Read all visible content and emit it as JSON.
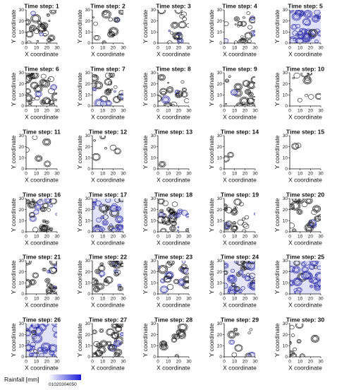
{
  "figure": {
    "panel_title_prefix": "Time step: ",
    "xlabel": "X coordinate",
    "ylabel": "Y coordinate",
    "xticks": [
      0,
      10,
      20,
      30
    ],
    "yticks": [
      0,
      10,
      20,
      30
    ],
    "colorbar_label": "Rainfall [mm]",
    "colorbar_ticks": [
      "0",
      "10",
      "20",
      "30",
      "40",
      "50"
    ]
  },
  "colors": {
    "contour_dark": "#111111",
    "contour_blue": "#2a2aa8",
    "fill_light": "#c8c8f0",
    "colorbar_low": "#ffffff",
    "colorbar_high": "#1a1ad8"
  },
  "chart_data": {
    "type": "contour",
    "grid": {
      "rows": 6,
      "cols": 5
    },
    "xlim": [
      0,
      30
    ],
    "ylim": [
      0,
      30
    ],
    "panels": [
      {
        "step": 1,
        "intensity": 0.6,
        "blue": 0.1
      },
      {
        "step": 2,
        "intensity": 0.4,
        "blue": 0.15
      },
      {
        "step": 3,
        "intensity": 0.45,
        "blue": 0.35
      },
      {
        "step": 4,
        "intensity": 0.55,
        "blue": 0.15
      },
      {
        "step": 5,
        "intensity": 0.9,
        "blue": 0.9
      },
      {
        "step": 6,
        "intensity": 0.7,
        "blue": 0.15
      },
      {
        "step": 7,
        "intensity": 0.6,
        "blue": 0.2
      },
      {
        "step": 8,
        "intensity": 0.5,
        "blue": 0.15
      },
      {
        "step": 9,
        "intensity": 0.45,
        "blue": 0.1
      },
      {
        "step": 10,
        "intensity": 0.3,
        "blue": 0.05
      },
      {
        "step": 11,
        "intensity": 0.12,
        "blue": 0.05
      },
      {
        "step": 12,
        "intensity": 0.15,
        "blue": 0.05
      },
      {
        "step": 13,
        "intensity": 0.02,
        "blue": 0.0
      },
      {
        "step": 14,
        "intensity": 0.06,
        "blue": 0.0
      },
      {
        "step": 15,
        "intensity": 0.06,
        "blue": 0.0
      },
      {
        "step": 16,
        "intensity": 0.7,
        "blue": 0.2
      },
      {
        "step": 17,
        "intensity": 0.85,
        "blue": 0.75
      },
      {
        "step": 18,
        "intensity": 0.8,
        "blue": 0.25
      },
      {
        "step": 19,
        "intensity": 0.55,
        "blue": 0.1
      },
      {
        "step": 20,
        "intensity": 0.55,
        "blue": 0.15
      },
      {
        "step": 21,
        "intensity": 0.5,
        "blue": 0.1
      },
      {
        "step": 22,
        "intensity": 0.6,
        "blue": 0.15
      },
      {
        "step": 23,
        "intensity": 0.55,
        "blue": 0.4
      },
      {
        "step": 24,
        "intensity": 0.8,
        "blue": 0.6
      },
      {
        "step": 25,
        "intensity": 0.85,
        "blue": 0.9
      },
      {
        "step": 26,
        "intensity": 0.95,
        "blue": 0.8
      },
      {
        "step": 27,
        "intensity": 0.7,
        "blue": 0.2
      },
      {
        "step": 28,
        "intensity": 0.3,
        "blue": 0.05
      },
      {
        "step": 29,
        "intensity": 0.25,
        "blue": 0.3
      },
      {
        "step": 30,
        "intensity": 0.3,
        "blue": 0.05
      }
    ]
  }
}
